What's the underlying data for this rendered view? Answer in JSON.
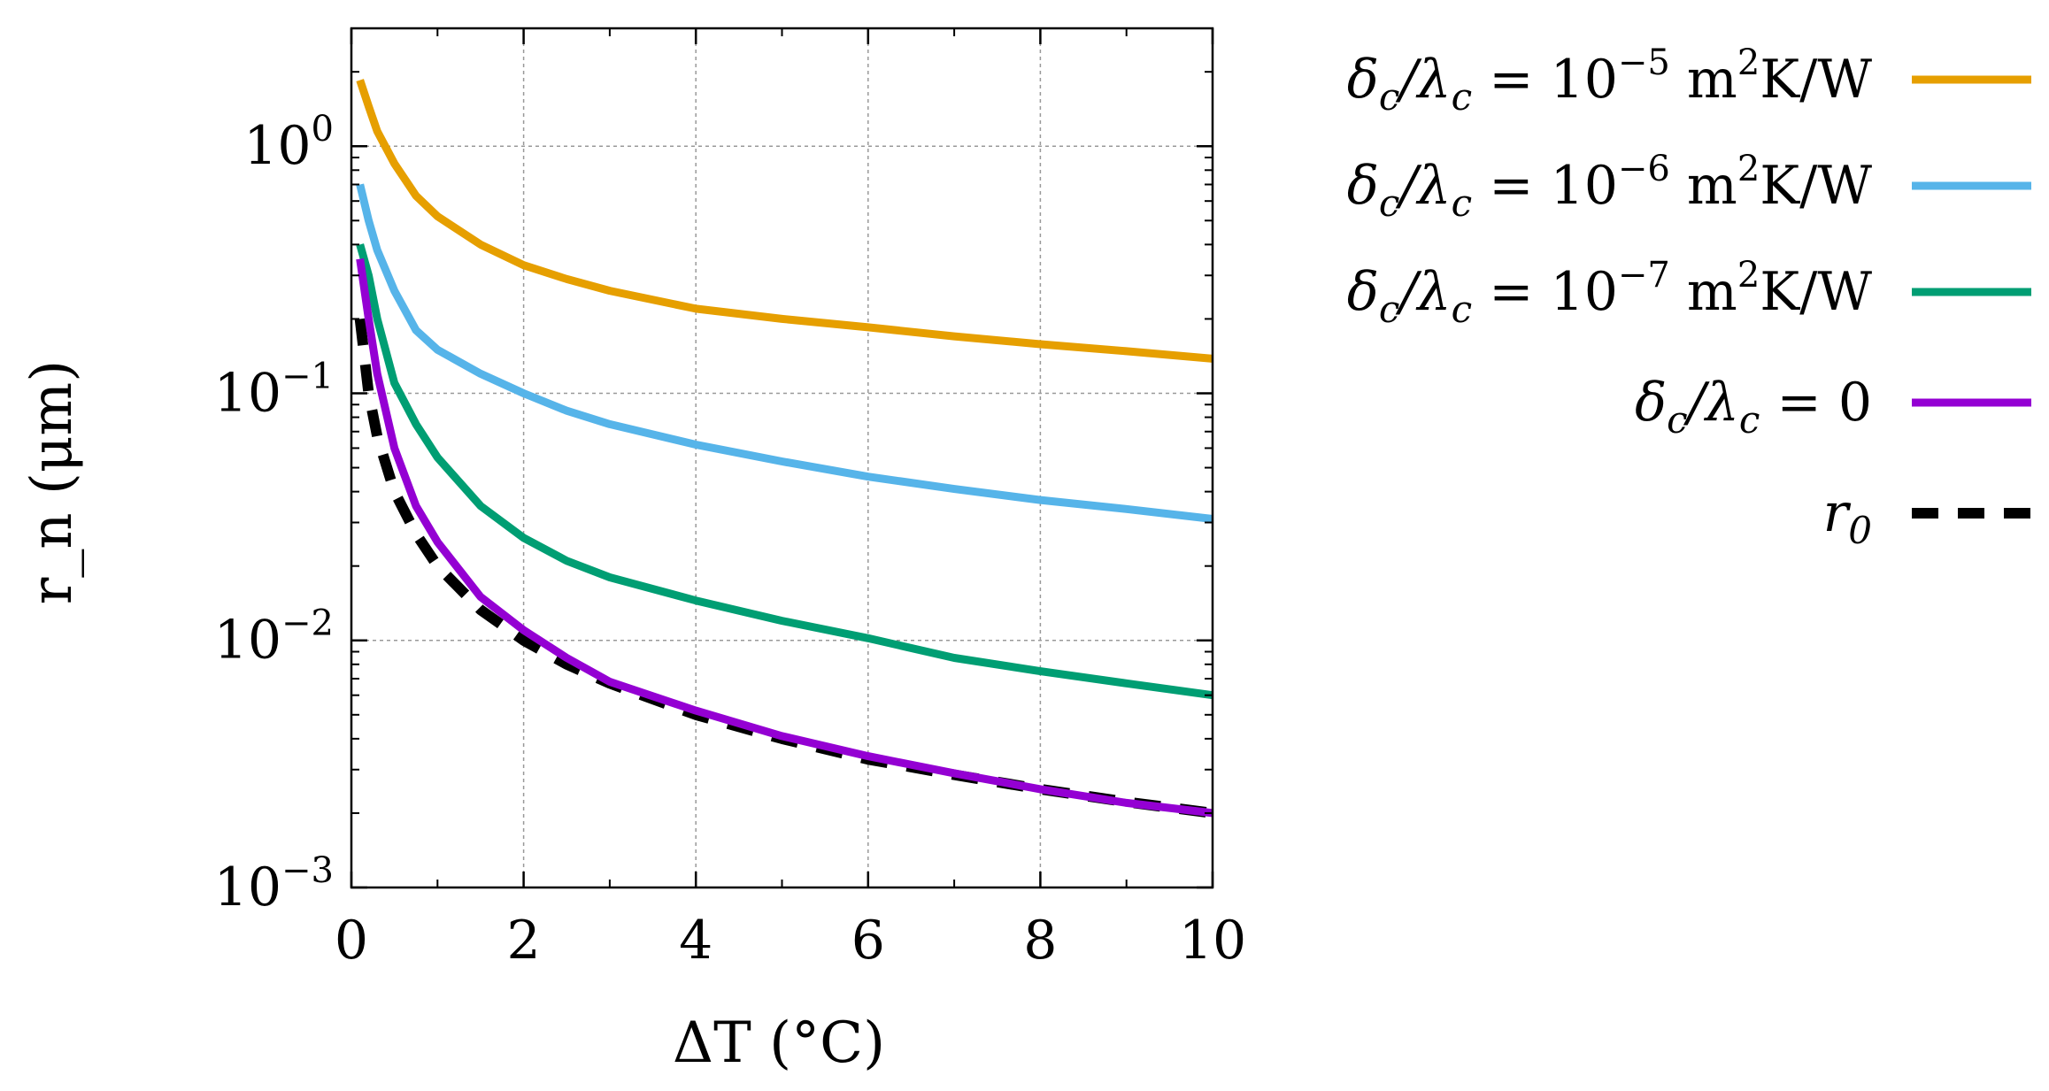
{
  "chart_data": {
    "type": "line",
    "title": "",
    "xlabel": "ΔT (°C)",
    "ylabel": "r_n (μm)",
    "xlim": [
      0,
      10
    ],
    "ylim": [
      0.001,
      3
    ],
    "yscale": "log",
    "grid": true,
    "legend_position": "right",
    "x_ticks": [
      {
        "value": 0,
        "label": "0"
      },
      {
        "value": 2,
        "label": "2"
      },
      {
        "value": 4,
        "label": "4"
      },
      {
        "value": 6,
        "label": "6"
      },
      {
        "value": 8,
        "label": "8"
      },
      {
        "value": 10,
        "label": "10"
      }
    ],
    "y_ticks": [
      {
        "value": 0.001,
        "base": "10",
        "exp": "−3"
      },
      {
        "value": 0.01,
        "base": "10",
        "exp": "−2"
      },
      {
        "value": 0.1,
        "base": "10",
        "exp": "−1"
      },
      {
        "value": 1,
        "base": "10",
        "exp": "0"
      }
    ],
    "series": [
      {
        "name": "δc/λc = 10^-5 m²K/W",
        "legend_label": {
          "lhs": "δ",
          "lhs_sub": "c",
          "slash": "/λ",
          "rhs_sub": "c",
          "eq": " = 10",
          "exp": "−5",
          "unit": " m",
          "unit_exp": "2",
          "unit_tail": "K/W"
        },
        "color": "#E69F00",
        "dashed": false,
        "x": [
          0.1,
          0.2,
          0.3,
          0.5,
          0.75,
          1,
          1.5,
          2,
          2.5,
          3,
          4,
          5,
          6,
          7,
          8,
          9,
          10
        ],
        "y": [
          1.85,
          1.45,
          1.15,
          0.85,
          0.63,
          0.52,
          0.4,
          0.33,
          0.29,
          0.26,
          0.22,
          0.2,
          0.185,
          0.17,
          0.158,
          0.148,
          0.138
        ]
      },
      {
        "name": "δc/λc = 10^-6 m²K/W",
        "legend_label": {
          "lhs": "δ",
          "lhs_sub": "c",
          "slash": "/λ",
          "rhs_sub": "c",
          "eq": " = 10",
          "exp": "−6",
          "unit": " m",
          "unit_exp": "2",
          "unit_tail": "K/W"
        },
        "color": "#56B4E9",
        "dashed": false,
        "x": [
          0.1,
          0.2,
          0.3,
          0.5,
          0.75,
          1,
          1.5,
          2,
          2.5,
          3,
          4,
          5,
          6,
          7,
          8,
          9,
          10
        ],
        "y": [
          0.7,
          0.5,
          0.38,
          0.26,
          0.18,
          0.15,
          0.12,
          0.1,
          0.085,
          0.075,
          0.062,
          0.053,
          0.046,
          0.041,
          0.037,
          0.034,
          0.031
        ]
      },
      {
        "name": "δc/λc = 10^-7 m²K/W",
        "legend_label": {
          "lhs": "δ",
          "lhs_sub": "c",
          "slash": "/λ",
          "rhs_sub": "c",
          "eq": " = 10",
          "exp": "−7",
          "unit": " m",
          "unit_exp": "2",
          "unit_tail": "K/W"
        },
        "color": "#009E73",
        "dashed": false,
        "x": [
          0.1,
          0.2,
          0.3,
          0.5,
          0.75,
          1,
          1.5,
          2,
          2.5,
          3,
          4,
          5,
          6,
          7,
          8,
          9,
          10
        ],
        "y": [
          0.4,
          0.3,
          0.2,
          0.11,
          0.075,
          0.055,
          0.035,
          0.026,
          0.021,
          0.018,
          0.0145,
          0.012,
          0.0102,
          0.0085,
          0.0075,
          0.0067,
          0.006
        ]
      },
      {
        "name": "δc/λc = 0",
        "legend_label": {
          "lhs": "δ",
          "lhs_sub": "c",
          "slash": "/λ",
          "rhs_sub": "c",
          "eq": " = 0",
          "exp": "",
          "unit": "",
          "unit_exp": "",
          "unit_tail": ""
        },
        "color": "#9400D3",
        "dashed": false,
        "x": [
          0.1,
          0.2,
          0.3,
          0.5,
          0.75,
          1,
          1.5,
          2,
          2.5,
          3,
          4,
          5,
          6,
          7,
          8,
          9,
          10
        ],
        "y": [
          0.35,
          0.2,
          0.12,
          0.06,
          0.035,
          0.025,
          0.015,
          0.011,
          0.0085,
          0.0068,
          0.0052,
          0.0041,
          0.0034,
          0.0029,
          0.0025,
          0.0022,
          0.002
        ]
      },
      {
        "name": "r0",
        "legend_label": {
          "lhs": "r",
          "lhs_sub": "0",
          "slash": "",
          "rhs_sub": "",
          "eq": "",
          "exp": "",
          "unit": "",
          "unit_exp": "",
          "unit_tail": ""
        },
        "color": "#000000",
        "dashed": true,
        "x": [
          0.1,
          0.2,
          0.3,
          0.5,
          0.75,
          1,
          1.5,
          2,
          2.5,
          3,
          4,
          5,
          6,
          7,
          8,
          9,
          10
        ],
        "y": [
          0.2,
          0.1,
          0.067,
          0.04,
          0.027,
          0.02,
          0.0133,
          0.01,
          0.008,
          0.0067,
          0.005,
          0.004,
          0.0033,
          0.00286,
          0.0025,
          0.00222,
          0.002
        ]
      }
    ]
  }
}
